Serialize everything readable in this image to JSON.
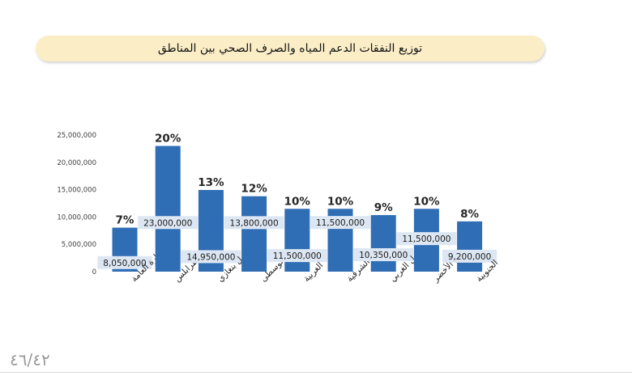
{
  "title": "توزيع النفقات الدعم المياه والصرف الصحي بين المناطق",
  "page_number": "٤٦/٤٢",
  "colors": {
    "bar": "#2f6db5",
    "label_box": "#dde7f3",
    "banner": "#fbeec7"
  },
  "chart_data": {
    "type": "bar",
    "categories": [
      "الإدارة العامة",
      "طرابلس",
      "سهل بنغازي",
      "الوسطى",
      "الغربية",
      "الوسطى الشرقية",
      "الجبل الغربي",
      "الجبل الأخضر",
      "الجنوبية"
    ],
    "values": [
      8050000,
      23000000,
      14950000,
      13800000,
      11500000,
      11500000,
      10350000,
      11500000,
      9200000
    ],
    "value_labels": [
      "8,050,000",
      "23,000,000",
      "14,950,000",
      "13,800,000",
      "11,500,000",
      "11,500,000",
      "10,350,000",
      "11,500,000",
      "9,200,000"
    ],
    "percent_labels": [
      "7%",
      "20%",
      "13%",
      "12%",
      "10%",
      "10%",
      "9%",
      "10%",
      "8%"
    ],
    "yticks": [
      "0",
      "5,000,000",
      "10,000,000",
      "15,000,000",
      "20,000,000",
      "25,000,000"
    ],
    "ytick_values": [
      0,
      5000000,
      10000000,
      15000000,
      20000000,
      25000000
    ],
    "ylim": [
      0,
      25000000
    ],
    "title": "",
    "xlabel": "",
    "ylabel": "",
    "grid": false,
    "legend": "none"
  }
}
